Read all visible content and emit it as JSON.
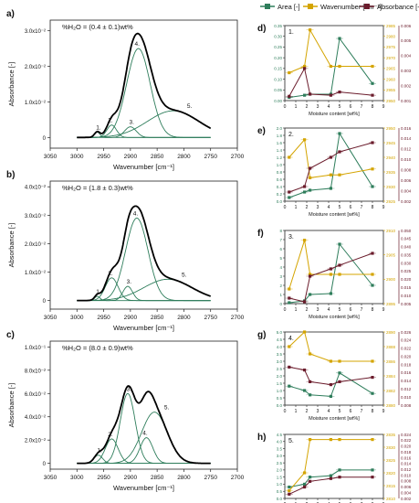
{
  "colors": {
    "area": "#2e7d5b",
    "wavenumber": "#d4a400",
    "absorbance": "#6b1c2c",
    "envelope": "#000000",
    "component": "#2e7d5b",
    "axis": "#222222"
  },
  "legend": {
    "area": "Area [-]",
    "wavenumber": "Wavenumber [cm⁻¹]",
    "absorbance": "Absorbance [-]"
  },
  "chart_data": [
    {
      "type": "line",
      "panel_letter": "a)",
      "title": "%H₂O = (0.4 ± 0.1)wt%",
      "xlabel": "Wavenumber [cm⁻¹]",
      "ylabel": "Absorbance [-]",
      "xlim": [
        3050,
        2700
      ],
      "ylim": [
        -0.003,
        0.033
      ],
      "x_ticks": [
        "3050",
        "3000",
        "2950",
        "2900",
        "2850",
        "2800",
        "2750",
        "2700"
      ],
      "y_ticks": [
        {
          "label": "0",
          "v": 0
        },
        {
          "label": "1.0x10⁻²",
          "v": 0.01
        },
        {
          "label": "2.0x10⁻²",
          "v": 0.02
        },
        {
          "label": "3.0x10⁻²",
          "v": 0.03
        }
      ],
      "x_range": [
        3000,
        2750
      ],
      "peaks": [
        {
          "label": "1.",
          "center": 2962,
          "height": 0.0015,
          "width": 5
        },
        {
          "label": "2.",
          "center": 2935,
          "height": 0.0035,
          "width": 9
        },
        {
          "label": "3.",
          "center": 2900,
          "height": 0.003,
          "width": 11
        },
        {
          "label": "4.",
          "center": 2885,
          "height": 0.025,
          "width": 22
        },
        {
          "label": "5.",
          "center": 2820,
          "height": 0.0075,
          "width": 48
        }
      ]
    },
    {
      "type": "line",
      "panel_letter": "b)",
      "title": "%H₂O = (1.8 ± 0.3)wt%",
      "xlabel": "Wavenumber [cm⁻¹]",
      "ylabel": "Absorbance [-]",
      "xlim": [
        3050,
        2700
      ],
      "ylim": [
        -0.003,
        0.042
      ],
      "x_ticks": [
        "3050",
        "3000",
        "2950",
        "2900",
        "2850",
        "2800",
        "2750",
        "2700"
      ],
      "y_ticks": [
        {
          "label": "0",
          "v": 0
        },
        {
          "label": "1.0x10⁻²",
          "v": 0.01
        },
        {
          "label": "2.0x10⁻²",
          "v": 0.02
        },
        {
          "label": "3.0x10⁻²",
          "v": 0.03
        },
        {
          "label": "4.0x10⁻²",
          "v": 0.04
        }
      ],
      "x_range": [
        3000,
        2750
      ],
      "peaks": [
        {
          "label": "1.",
          "center": 2962,
          "height": 0.0015,
          "width": 5
        },
        {
          "label": "2.",
          "center": 2935,
          "height": 0.008,
          "width": 12
        },
        {
          "label": "3.",
          "center": 2905,
          "height": 0.005,
          "width": 9
        },
        {
          "label": "4.",
          "center": 2888,
          "height": 0.029,
          "width": 21
        },
        {
          "label": "5.",
          "center": 2830,
          "height": 0.0075,
          "width": 45
        }
      ]
    },
    {
      "type": "line",
      "panel_letter": "c)",
      "title": "%H₂O = (8.0 ± 0.9)wt%",
      "xlabel": "Wavenumber [cm⁻¹]",
      "ylabel": "Absorbance [-]",
      "xlim": [
        3050,
        2700
      ],
      "ylim": [
        -0.005,
        0.105
      ],
      "x_ticks": [
        "3050",
        "3000",
        "2950",
        "2900",
        "2850",
        "2800",
        "2750",
        "2700"
      ],
      "y_ticks": [
        {
          "label": "0",
          "v": 0
        },
        {
          "label": "2.0x10⁻²",
          "v": 0.02
        },
        {
          "label": "4.0x10⁻²",
          "v": 0.04
        },
        {
          "label": "6.0x10⁻²",
          "v": 0.06
        },
        {
          "label": "8.0x10⁻²",
          "v": 0.08
        },
        {
          "label": "1.0x10⁻¹",
          "v": 0.1
        }
      ],
      "x_range": [
        3000,
        2750
      ],
      "peaks": [
        {
          "label": "1.",
          "center": 2960,
          "height": 0.007,
          "width": 8
        },
        {
          "label": "2.",
          "center": 2935,
          "height": 0.021,
          "width": 12
        },
        {
          "label": "3.",
          "center": 2905,
          "height": 0.06,
          "width": 14
        },
        {
          "label": "4.",
          "center": 2870,
          "height": 0.022,
          "width": 12
        },
        {
          "label": "5.",
          "center": 2855,
          "height": 0.044,
          "width": 24
        }
      ]
    },
    {
      "type": "line",
      "panel_letter": "d)",
      "panel_label": "1.",
      "xlabel": "Moisture content [wt%]",
      "xlim": [
        0,
        9
      ],
      "x_ticks": [
        "0",
        "1",
        "2",
        "3",
        "4",
        "5",
        "6",
        "7",
        "8",
        "9"
      ],
      "left_axis": {
        "label": "Area [-]",
        "ylim": [
          0,
          0.35
        ],
        "ticks": [
          "0.00",
          "0.05",
          "0.10",
          "0.15",
          "0.20",
          "0.25",
          "0.30",
          "0.35"
        ]
      },
      "right_axis": {
        "label": "Wavenumber [cm⁻¹]",
        "ylim": [
          2950,
          2985
        ],
        "ticks": [
          "2950",
          "2955",
          "2960",
          "2965",
          "2970",
          "2975",
          "2980",
          "2985"
        ]
      },
      "right_axis2": {
        "label": "Absorbance [-]",
        "ticks": [
          "0.001",
          "0.002",
          "0.003",
          "0.004",
          "0.005",
          "0.006"
        ]
      },
      "x": [
        0.4,
        1.8,
        2.3,
        4.2,
        5.0,
        8.0
      ],
      "series": [
        {
          "name": "Area [-]",
          "axis": "left",
          "values": [
            0.015,
            0.025,
            0.03,
            0.03,
            0.29,
            0.08
          ]
        },
        {
          "name": "Wavenumber [cm⁻¹]",
          "axis": "right",
          "values": [
            2963,
            2966,
            2983,
            2966,
            2966,
            2966
          ]
        },
        {
          "name": "Absorbance [-]",
          "axis": "left",
          "values": [
            0.02,
            0.15,
            0.03,
            0.025,
            0.04,
            0.025
          ]
        }
      ]
    },
    {
      "type": "line",
      "panel_letter": "e)",
      "panel_label": "2.",
      "xlabel": "Moisture content [wt%]",
      "xlim": [
        0,
        9
      ],
      "x_ticks": [
        "0",
        "1",
        "2",
        "3",
        "4",
        "5",
        "6",
        "7",
        "8",
        "9"
      ],
      "left_axis": {
        "label": "Area [-]",
        "ylim": [
          0,
          2.0
        ],
        "ticks": [
          "0.0",
          "0.2",
          "0.4",
          "0.6",
          "0.8",
          "1.0",
          "1.2",
          "1.4",
          "1.6",
          "1.8",
          "2.0"
        ]
      },
      "right_axis": {
        "label": "Wavenumber [cm⁻¹]",
        "ylim": [
          2925,
          2950
        ],
        "ticks": [
          "2925",
          "2930",
          "2935",
          "2940",
          "2945",
          "2950"
        ]
      },
      "right_axis2": {
        "label": "Absorbance [-]",
        "ticks": [
          "0.002",
          "0.004",
          "0.006",
          "0.008",
          "0.010",
          "0.012",
          "0.014",
          "0.016"
        ]
      },
      "x": [
        0.4,
        1.8,
        2.3,
        4.2,
        5.0,
        8.0
      ],
      "series": [
        {
          "name": "Area [-]",
          "axis": "left",
          "values": [
            0.1,
            0.25,
            0.3,
            0.35,
            1.85,
            0.4
          ]
        },
        {
          "name": "Wavenumber [cm⁻¹]",
          "axis": "right",
          "values": [
            2940,
            2946,
            2933,
            2934,
            2934,
            2936
          ]
        },
        {
          "name": "Absorbance [-]",
          "axis": "left",
          "values": [
            0.25,
            0.4,
            0.9,
            1.2,
            1.35,
            1.6
          ]
        }
      ]
    },
    {
      "type": "line",
      "panel_letter": "f)",
      "panel_label": "3.",
      "xlabel": "Moisture content [wt%]",
      "xlim": [
        0,
        9
      ],
      "x_ticks": [
        "0",
        "1",
        "2",
        "3",
        "4",
        "5",
        "6",
        "7",
        "8",
        "9"
      ],
      "left_axis": {
        "label": "Area [-]",
        "ylim": [
          0,
          8
        ],
        "ticks": [
          "0",
          "1",
          "2",
          "3",
          "4",
          "5",
          "6",
          "7",
          "8"
        ]
      },
      "right_axis": {
        "label": "Wavenumber [cm⁻¹]",
        "ylim": [
          2895,
          2910
        ],
        "ticks": [
          "2895",
          "2900",
          "2905",
          "2910"
        ]
      },
      "right_axis2": {
        "label": "Absorbance [-]",
        "ticks": [
          "0.005",
          "0.010",
          "0.015",
          "0.020",
          "0.025",
          "0.030",
          "0.035",
          "0.040",
          "0.045",
          "0.050"
        ]
      },
      "x": [
        0.4,
        1.8,
        2.3,
        4.2,
        5.0,
        8.0
      ],
      "series": [
        {
          "name": "Area [-]",
          "axis": "left",
          "values": [
            0.1,
            0.3,
            1.0,
            1.1,
            6.5,
            2.0
          ]
        },
        {
          "name": "Wavenumber [cm⁻¹]",
          "axis": "right",
          "values": [
            2898,
            2908,
            2901,
            2901,
            2901,
            2901
          ]
        },
        {
          "name": "Absorbance [-]",
          "axis": "left",
          "values": [
            0.6,
            0.2,
            3.0,
            3.8,
            4.2,
            5.5
          ]
        }
      ]
    },
    {
      "type": "line",
      "panel_letter": "g)",
      "panel_label": "4.",
      "xlabel": "Moisture content [wt%]",
      "xlim": [
        0,
        9
      ],
      "x_ticks": [
        "0",
        "1",
        "2",
        "3",
        "4",
        "5",
        "6",
        "7",
        "8",
        "9"
      ],
      "left_axis": {
        "label": "Area [-]",
        "ylim": [
          0,
          5.0
        ],
        "ticks": [
          "0.0",
          "0.5",
          "1.0",
          "1.5",
          "2.0",
          "2.5",
          "3.0",
          "3.5",
          "4.0",
          "4.5",
          "5.0"
        ]
      },
      "right_axis": {
        "label": "Wavenumber [cm⁻¹]",
        "ylim": [
          2880,
          2890
        ],
        "ticks": [
          "2880",
          "2882",
          "2884",
          "2886",
          "2888",
          "2890"
        ]
      },
      "right_axis2": {
        "label": "Absorbance [-]",
        "ticks": [
          "0.008",
          "0.010",
          "0.012",
          "0.014",
          "0.016",
          "0.018",
          "0.020",
          "0.022",
          "0.024",
          "0.026"
        ]
      },
      "x": [
        0.4,
        1.8,
        2.3,
        4.2,
        5.0,
        8.0
      ],
      "series": [
        {
          "name": "Area [-]",
          "axis": "left",
          "values": [
            1.3,
            1.0,
            0.7,
            0.6,
            2.2,
            0.8
          ]
        },
        {
          "name": "Wavenumber [cm⁻¹]",
          "axis": "right",
          "values": [
            2888,
            2890,
            2887,
            2886,
            2886,
            2886
          ]
        },
        {
          "name": "Absorbance [-]",
          "axis": "left",
          "values": [
            2.6,
            2.4,
            1.6,
            1.4,
            1.6,
            1.9
          ]
        }
      ]
    },
    {
      "type": "line",
      "panel_letter": "h)",
      "panel_label": "5.",
      "xlabel": "Moisture content [wt%]",
      "xlim": [
        0,
        9
      ],
      "x_ticks": [
        "0",
        "1",
        "2",
        "3",
        "4",
        "5",
        "6",
        "7",
        "8",
        "9"
      ],
      "left_axis": {
        "label": "Area [-]",
        "ylim": [
          0,
          4.5
        ],
        "ticks": [
          "0.0",
          "0.5",
          "1.0",
          "1.5",
          "2.0",
          "2.5",
          "3.0",
          "3.5",
          "4.0",
          "4.5"
        ]
      },
      "right_axis": {
        "label": "Wavenumber [cm⁻¹]",
        "ylim": [
          2810,
          2835
        ],
        "ticks": [
          "2810",
          "2815",
          "2820",
          "2825",
          "2830",
          "2835"
        ]
      },
      "right_axis2": {
        "label": "Absorbance [-]",
        "ticks": [
          "0.002",
          "0.004",
          "0.006",
          "0.008",
          "0.010",
          "0.012",
          "0.014",
          "0.016",
          "0.018",
          "0.020",
          "0.022",
          "0.024"
        ]
      },
      "x": [
        0.4,
        1.8,
        2.3,
        4.2,
        5.0,
        8.0
      ],
      "series": [
        {
          "name": "Area [-]",
          "axis": "left",
          "values": [
            0.8,
            1.0,
            1.5,
            1.6,
            2.0,
            2.0
          ]
        },
        {
          "name": "Wavenumber [cm⁻¹]",
          "axis": "right",
          "values": [
            2813,
            2820,
            2833,
            2833,
            2833,
            2833
          ]
        },
        {
          "name": "Absorbance [-]",
          "axis": "left",
          "values": [
            0.3,
            0.8,
            1.2,
            1.4,
            1.5,
            1.5
          ]
        }
      ]
    }
  ]
}
